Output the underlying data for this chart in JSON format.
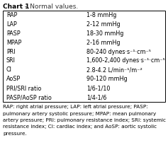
{
  "title_bold": "Chart 1",
  "title_normal": " – Normal values.",
  "rows": [
    [
      "RAP",
      "1-8 mmHg"
    ],
    [
      "LAP",
      "2-12 mmHg"
    ],
    [
      "PASP",
      "18-30 mmHg"
    ],
    [
      "MPAP",
      "2-16 mmHg"
    ],
    [
      "PRI",
      "80-240 dynes·s⁻¹·cm⁻⁵"
    ],
    [
      "SRI",
      "1,600-2,400 dynes·s⁻¹·cm⁻⁵"
    ],
    [
      "CI",
      "2.8-4.2 L/min⁻¹/m⁻²"
    ],
    [
      "AoSP",
      "90-120 mmHg"
    ],
    [
      "PRI/SRI ratio",
      "1/6-1/10"
    ],
    [
      "PASP/AoSP ratio",
      "1/4-1/6"
    ]
  ],
  "footnote_lines": [
    "RAP: right atrial pressure; LAP: left atrial pressure; PASP:",
    "pulmonary artery systolic pressure; MPAP: mean pulmonary",
    "artery pressure; PRI: pulmonary resistance index; SRI: systemic",
    "resistance index; CI: cardiac index; and AoSP: aortic systolic",
    "pressure."
  ],
  "bg_color": "#ffffff",
  "border_color": "#000000",
  "title_fontsize": 6.5,
  "table_fontsize": 5.8,
  "footnote_fontsize": 5.2,
  "fig_width": 2.37,
  "fig_height": 2.12,
  "dpi": 100
}
